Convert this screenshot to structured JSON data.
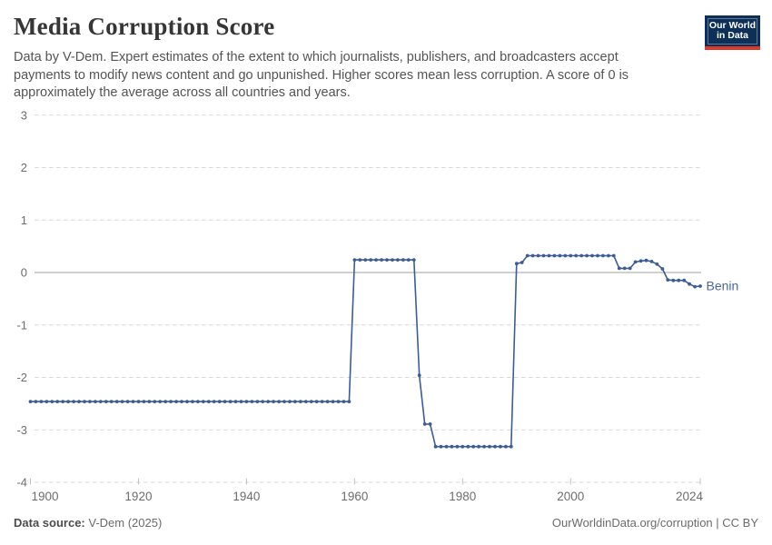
{
  "header": {
    "title": "Media Corruption Score",
    "subtitle": "Data by V-Dem. Expert estimates of the extent to which journalists, publishers, and broadcasters accept payments to modify news content and go unpunished. Higher scores mean less corruption. A score of 0 is approximately the average across all countries and years.",
    "logo_line1": "Our World",
    "logo_line2": "in Data"
  },
  "footer": {
    "source_label": "Data source:",
    "source_value": " V-Dem (2025)",
    "right_text": "OurWorldinData.org/corruption | CC BY"
  },
  "colors": {
    "line": "#3d5c94",
    "entity_label": "#4a6794",
    "gridline": "#d8d8d8",
    "zero_line": "#a0a0a0",
    "tick_mark": "#c0c0c0",
    "axis_text": "#6d6d6d",
    "logo_bg": "#0e2f57",
    "logo_stripe": "#d93a2b"
  },
  "chart_data": {
    "type": "line",
    "title": "Media Corruption Score",
    "xlabel": "",
    "ylabel": "",
    "xlim": [
      1900,
      2024
    ],
    "ylim": [
      -4,
      3
    ],
    "x_ticks": [
      1900,
      1920,
      1940,
      1960,
      1980,
      2000,
      2024
    ],
    "y_ticks": [
      3,
      2,
      1,
      0,
      -1,
      -2,
      -3,
      -4
    ],
    "grid": "horizontal-dashed",
    "zero_line": true,
    "legend": "end-of-line-label",
    "series": [
      {
        "name": "Benin",
        "points": [
          [
            1900,
            -2.46
          ],
          [
            1901,
            -2.46
          ],
          [
            1902,
            -2.46
          ],
          [
            1903,
            -2.46
          ],
          [
            1904,
            -2.46
          ],
          [
            1905,
            -2.46
          ],
          [
            1906,
            -2.46
          ],
          [
            1907,
            -2.46
          ],
          [
            1908,
            -2.46
          ],
          [
            1909,
            -2.46
          ],
          [
            1910,
            -2.46
          ],
          [
            1911,
            -2.46
          ],
          [
            1912,
            -2.46
          ],
          [
            1913,
            -2.46
          ],
          [
            1914,
            -2.46
          ],
          [
            1915,
            -2.46
          ],
          [
            1916,
            -2.46
          ],
          [
            1917,
            -2.46
          ],
          [
            1918,
            -2.46
          ],
          [
            1919,
            -2.46
          ],
          [
            1920,
            -2.46
          ],
          [
            1921,
            -2.46
          ],
          [
            1922,
            -2.46
          ],
          [
            1923,
            -2.46
          ],
          [
            1924,
            -2.46
          ],
          [
            1925,
            -2.46
          ],
          [
            1926,
            -2.46
          ],
          [
            1927,
            -2.46
          ],
          [
            1928,
            -2.46
          ],
          [
            1929,
            -2.46
          ],
          [
            1930,
            -2.46
          ],
          [
            1931,
            -2.46
          ],
          [
            1932,
            -2.46
          ],
          [
            1933,
            -2.46
          ],
          [
            1934,
            -2.46
          ],
          [
            1935,
            -2.46
          ],
          [
            1936,
            -2.46
          ],
          [
            1937,
            -2.46
          ],
          [
            1938,
            -2.46
          ],
          [
            1939,
            -2.46
          ],
          [
            1940,
            -2.46
          ],
          [
            1941,
            -2.46
          ],
          [
            1942,
            -2.46
          ],
          [
            1943,
            -2.46
          ],
          [
            1944,
            -2.46
          ],
          [
            1945,
            -2.46
          ],
          [
            1946,
            -2.46
          ],
          [
            1947,
            -2.46
          ],
          [
            1948,
            -2.46
          ],
          [
            1949,
            -2.46
          ],
          [
            1950,
            -2.46
          ],
          [
            1951,
            -2.46
          ],
          [
            1952,
            -2.46
          ],
          [
            1953,
            -2.46
          ],
          [
            1954,
            -2.46
          ],
          [
            1955,
            -2.46
          ],
          [
            1956,
            -2.46
          ],
          [
            1957,
            -2.46
          ],
          [
            1958,
            -2.46
          ],
          [
            1959,
            -2.46
          ],
          [
            1960,
            0.24
          ],
          [
            1961,
            0.24
          ],
          [
            1962,
            0.24
          ],
          [
            1963,
            0.24
          ],
          [
            1964,
            0.24
          ],
          [
            1965,
            0.24
          ],
          [
            1966,
            0.24
          ],
          [
            1967,
            0.24
          ],
          [
            1968,
            0.24
          ],
          [
            1969,
            0.24
          ],
          [
            1970,
            0.24
          ],
          [
            1971,
            0.24
          ],
          [
            1972,
            -1.96
          ],
          [
            1973,
            -2.89
          ],
          [
            1974,
            -2.89
          ],
          [
            1975,
            -3.32
          ],
          [
            1976,
            -3.32
          ],
          [
            1977,
            -3.32
          ],
          [
            1978,
            -3.32
          ],
          [
            1979,
            -3.32
          ],
          [
            1980,
            -3.32
          ],
          [
            1981,
            -3.32
          ],
          [
            1982,
            -3.32
          ],
          [
            1983,
            -3.32
          ],
          [
            1984,
            -3.32
          ],
          [
            1985,
            -3.32
          ],
          [
            1986,
            -3.32
          ],
          [
            1987,
            -3.32
          ],
          [
            1988,
            -3.32
          ],
          [
            1989,
            -3.32
          ],
          [
            1990,
            0.17
          ],
          [
            1991,
            0.19
          ],
          [
            1992,
            0.32
          ],
          [
            1993,
            0.32
          ],
          [
            1994,
            0.32
          ],
          [
            1995,
            0.32
          ],
          [
            1996,
            0.32
          ],
          [
            1997,
            0.32
          ],
          [
            1998,
            0.32
          ],
          [
            1999,
            0.32
          ],
          [
            2000,
            0.32
          ],
          [
            2001,
            0.32
          ],
          [
            2002,
            0.32
          ],
          [
            2003,
            0.32
          ],
          [
            2004,
            0.32
          ],
          [
            2005,
            0.32
          ],
          [
            2006,
            0.32
          ],
          [
            2007,
            0.32
          ],
          [
            2008,
            0.32
          ],
          [
            2009,
            0.08
          ],
          [
            2010,
            0.08
          ],
          [
            2011,
            0.08
          ],
          [
            2012,
            0.2
          ],
          [
            2013,
            0.22
          ],
          [
            2014,
            0.23
          ],
          [
            2015,
            0.21
          ],
          [
            2016,
            0.16
          ],
          [
            2017,
            0.07
          ],
          [
            2018,
            -0.14
          ],
          [
            2019,
            -0.15
          ],
          [
            2020,
            -0.15
          ],
          [
            2021,
            -0.15
          ],
          [
            2022,
            -0.22
          ],
          [
            2023,
            -0.27
          ],
          [
            2024,
            -0.26
          ]
        ]
      }
    ]
  }
}
